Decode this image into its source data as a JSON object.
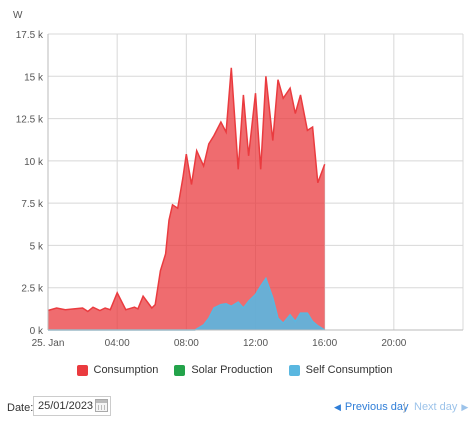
{
  "chart_data": {
    "type": "area",
    "ylabel": "W",
    "ylim": [
      0,
      17500
    ],
    "y_ticks": [
      0,
      2500,
      5000,
      7500,
      10000,
      12500,
      15000,
      17500
    ],
    "y_tick_labels": [
      "0 k",
      "2.5 k",
      "5 k",
      "7.5 k",
      "10 k",
      "12.5 k",
      "15 k",
      "17.5 k"
    ],
    "xlim_hours": [
      0,
      24
    ],
    "x_ticks_hours": [
      0,
      4,
      8,
      12,
      16,
      20
    ],
    "x_tick_labels": [
      "25. Jan",
      "04:00",
      "08:00",
      "12:00",
      "16:00",
      "20:00"
    ],
    "grid": true,
    "legend_position": "bottom",
    "series": [
      {
        "name": "Consumption",
        "color": "#ea3b3f",
        "x": [
          0,
          0.5,
          1,
          1.5,
          2,
          2.3,
          2.6,
          3,
          3.3,
          3.6,
          4,
          4.5,
          5,
          5.2,
          5.5,
          6,
          6.2,
          6.5,
          6.8,
          7,
          7.2,
          7.5,
          7.8,
          8,
          8.3,
          8.6,
          9,
          9.3,
          9.6,
          10,
          10.3,
          10.6,
          11,
          11.3,
          11.6,
          12,
          12.3,
          12.6,
          13,
          13.3,
          13.6,
          14,
          14.3,
          14.6,
          15,
          15.3,
          15.6,
          16
        ],
        "y": [
          1150,
          1300,
          1200,
          1250,
          1300,
          1100,
          1350,
          1150,
          1300,
          1200,
          2200,
          1200,
          1350,
          1250,
          2000,
          1300,
          1500,
          3500,
          4500,
          6500,
          7400,
          7200,
          9000,
          10400,
          8600,
          10600,
          9700,
          11000,
          11500,
          12300,
          11700,
          15500,
          9500,
          13900,
          10300,
          14000,
          9500,
          15000,
          11200,
          14800,
          13700,
          14300,
          12800,
          13900,
          11800,
          12000,
          8700,
          9800
        ]
      },
      {
        "name": "Solar Production",
        "color": "#23a34a",
        "x": [],
        "y": []
      },
      {
        "name": "Self Consumption",
        "color": "#5ab7e0",
        "x": [
          0,
          7.5,
          8,
          8.5,
          9,
          9.3,
          9.6,
          10,
          10.3,
          10.6,
          11,
          11.3,
          11.6,
          12,
          12.3,
          12.6,
          13,
          13.3,
          13.6,
          14,
          14.3,
          14.6,
          15,
          15.3,
          15.6,
          16
        ],
        "y": [
          0,
          0,
          0,
          0,
          300,
          700,
          1300,
          1500,
          1550,
          1400,
          1650,
          1300,
          1700,
          2100,
          2600,
          3050,
          1900,
          700,
          400,
          900,
          500,
          1000,
          1000,
          500,
          250,
          0
        ]
      }
    ]
  },
  "colors": {
    "grid": "#d8d8d8",
    "axis": "#bbbbbb",
    "text": "#555555",
    "link": "#2f7ed8",
    "link_disabled": "#9cc3ea"
  },
  "legend": [
    {
      "label": "Consumption",
      "color": "#ea3b3f"
    },
    {
      "label": "Solar Production",
      "color": "#23a34a"
    },
    {
      "label": "Self Consumption",
      "color": "#5ab7e0"
    }
  ],
  "controls": {
    "date_label": "Date:",
    "date_value": "25/01/2023",
    "prev_day_label": "Previous day",
    "separator": "|",
    "next_day_label": "Next day"
  }
}
